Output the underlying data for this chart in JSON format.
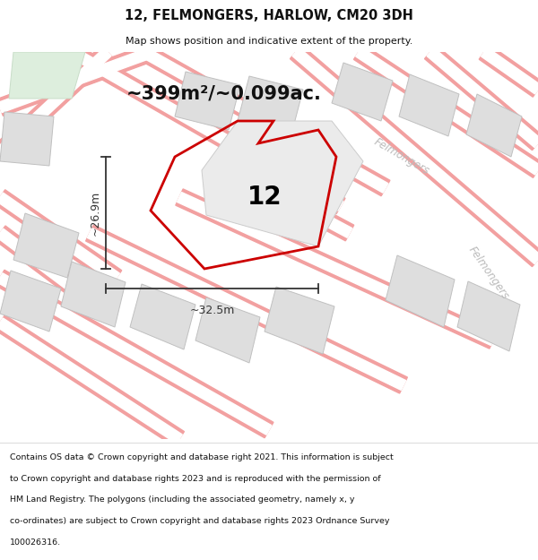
{
  "title": "12, FELMONGERS, HARLOW, CM20 3DH",
  "subtitle": "Map shows position and indicative extent of the property.",
  "area_text": "~399m²/~0.099ac.",
  "number_label": "12",
  "dim_h": "~26.9m",
  "dim_w": "~32.5m",
  "street_label1": "Felmongers",
  "street_label2": "Felmongers",
  "footer_lines": [
    "Contains OS data © Crown copyright and database right 2021. This information is subject",
    "to Crown copyright and database rights 2023 and is reproduced with the permission of",
    "HM Land Registry. The polygons (including the associated geometry, namely x, y",
    "co-ordinates) are subject to Crown copyright and database rights 2023 Ordnance Survey",
    "100026316."
  ],
  "bg_color": "#ffffff",
  "map_bg": "#f7f7f7",
  "road_outline_color": "#f2a0a0",
  "road_fill_color": "#ffffff",
  "building_color": "#dedede",
  "building_edge": "#cccccc",
  "green_color": "#ddeedd",
  "plot_color": "#cc0000",
  "dim_color": "#333333",
  "street_text_color": "#bbbbbb",
  "title_color": "#111111",
  "footer_color": "#111111",
  "area_text_color": "#111111"
}
